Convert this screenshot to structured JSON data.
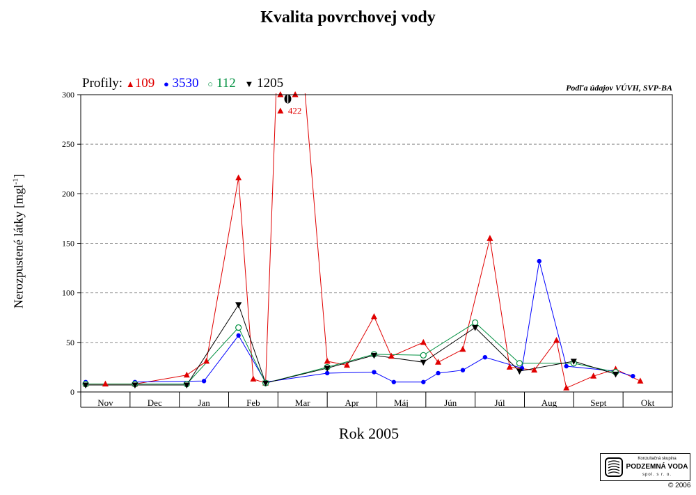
{
  "chart_data": {
    "type": "line",
    "title": "Kvalita povrchovej vody",
    "xlabel": "Rok  2005",
    "ylabel": "Nerozpustené látky [mgl",
    "ylabel_sup": "-1",
    "ylabel_end": "]",
    "source_note": "Podľa údajov VÚVH, SVP-BA",
    "legend_prefix": "Profily:",
    "legend_position": "top-left",
    "categories": [
      "Nov",
      "Dec",
      "Jan",
      "Feb",
      "Mar",
      "Apr",
      "Máj",
      "Jún",
      "Júl",
      "Aug",
      "Sept",
      "Okt"
    ],
    "xlim": [
      0,
      12
    ],
    "ylim": [
      0,
      300
    ],
    "yticks": [
      0,
      50,
      100,
      150,
      200,
      250,
      300
    ],
    "grid": "horizontal dashed",
    "off_scale_note": "422",
    "series": [
      {
        "name": "109",
        "color": "#e00000",
        "marker": "triangle-up",
        "points": [
          [
            0.1,
            8
          ],
          [
            0.5,
            8
          ],
          [
            1.1,
            8
          ],
          [
            2.15,
            17
          ],
          [
            2.55,
            31
          ],
          [
            3.2,
            216
          ],
          [
            3.5,
            13
          ],
          [
            3.75,
            9
          ],
          [
            4.05,
            422
          ],
          [
            4.35,
            422
          ],
          [
            5.0,
            31
          ],
          [
            5.4,
            27
          ],
          [
            5.95,
            76
          ],
          [
            6.3,
            36
          ],
          [
            6.95,
            50
          ],
          [
            7.25,
            30
          ],
          [
            7.75,
            43
          ],
          [
            8.3,
            155
          ],
          [
            8.7,
            25
          ],
          [
            9.2,
            22
          ],
          [
            9.65,
            52
          ],
          [
            9.85,
            4
          ],
          [
            10.4,
            16
          ],
          [
            10.85,
            23
          ],
          [
            11.35,
            11
          ]
        ]
      },
      {
        "name": "3530",
        "color": "#0000ff",
        "marker": "circle",
        "points": [
          [
            0.1,
            10
          ],
          [
            0.5,
            null
          ],
          [
            1.1,
            10
          ],
          [
            2.5,
            11
          ],
          [
            3.2,
            57
          ],
          [
            3.75,
            10
          ],
          [
            5.0,
            19
          ],
          [
            5.95,
            20
          ],
          [
            6.35,
            10
          ],
          [
            6.95,
            10
          ],
          [
            7.25,
            19
          ],
          [
            7.75,
            22
          ],
          [
            8.2,
            35
          ],
          [
            8.95,
            24
          ],
          [
            9.3,
            132
          ],
          [
            9.85,
            26
          ],
          [
            10.85,
            21
          ],
          [
            11.2,
            16
          ]
        ]
      },
      {
        "name": "112",
        "color": "#009040",
        "marker": "circle-open",
        "points": [
          [
            0.1,
            8
          ],
          [
            1.1,
            8
          ],
          [
            2.15,
            8
          ],
          [
            3.2,
            65
          ],
          [
            3.75,
            9
          ],
          [
            5.0,
            25
          ],
          [
            5.95,
            38
          ],
          [
            6.95,
            37
          ],
          [
            8.0,
            70
          ],
          [
            8.9,
            29
          ],
          [
            10.0,
            29
          ],
          [
            10.85,
            20
          ]
        ]
      },
      {
        "name": "1205",
        "color": "#000000",
        "marker": "triangle-down",
        "points": [
          [
            0.1,
            7
          ],
          [
            1.1,
            7
          ],
          [
            2.15,
            7
          ],
          [
            3.2,
            88
          ],
          [
            3.75,
            9
          ],
          [
            5.0,
            24
          ],
          [
            5.95,
            37
          ],
          [
            6.95,
            30
          ],
          [
            8.0,
            65
          ],
          [
            8.9,
            21
          ],
          [
            10.0,
            31
          ],
          [
            10.85,
            18
          ]
        ]
      }
    ]
  },
  "logo": {
    "line1": "Konzultačná skupina",
    "line2": "PODZEMNÁ VODA",
    "line3": "spol. s r. o."
  },
  "copyright": "© 2006"
}
